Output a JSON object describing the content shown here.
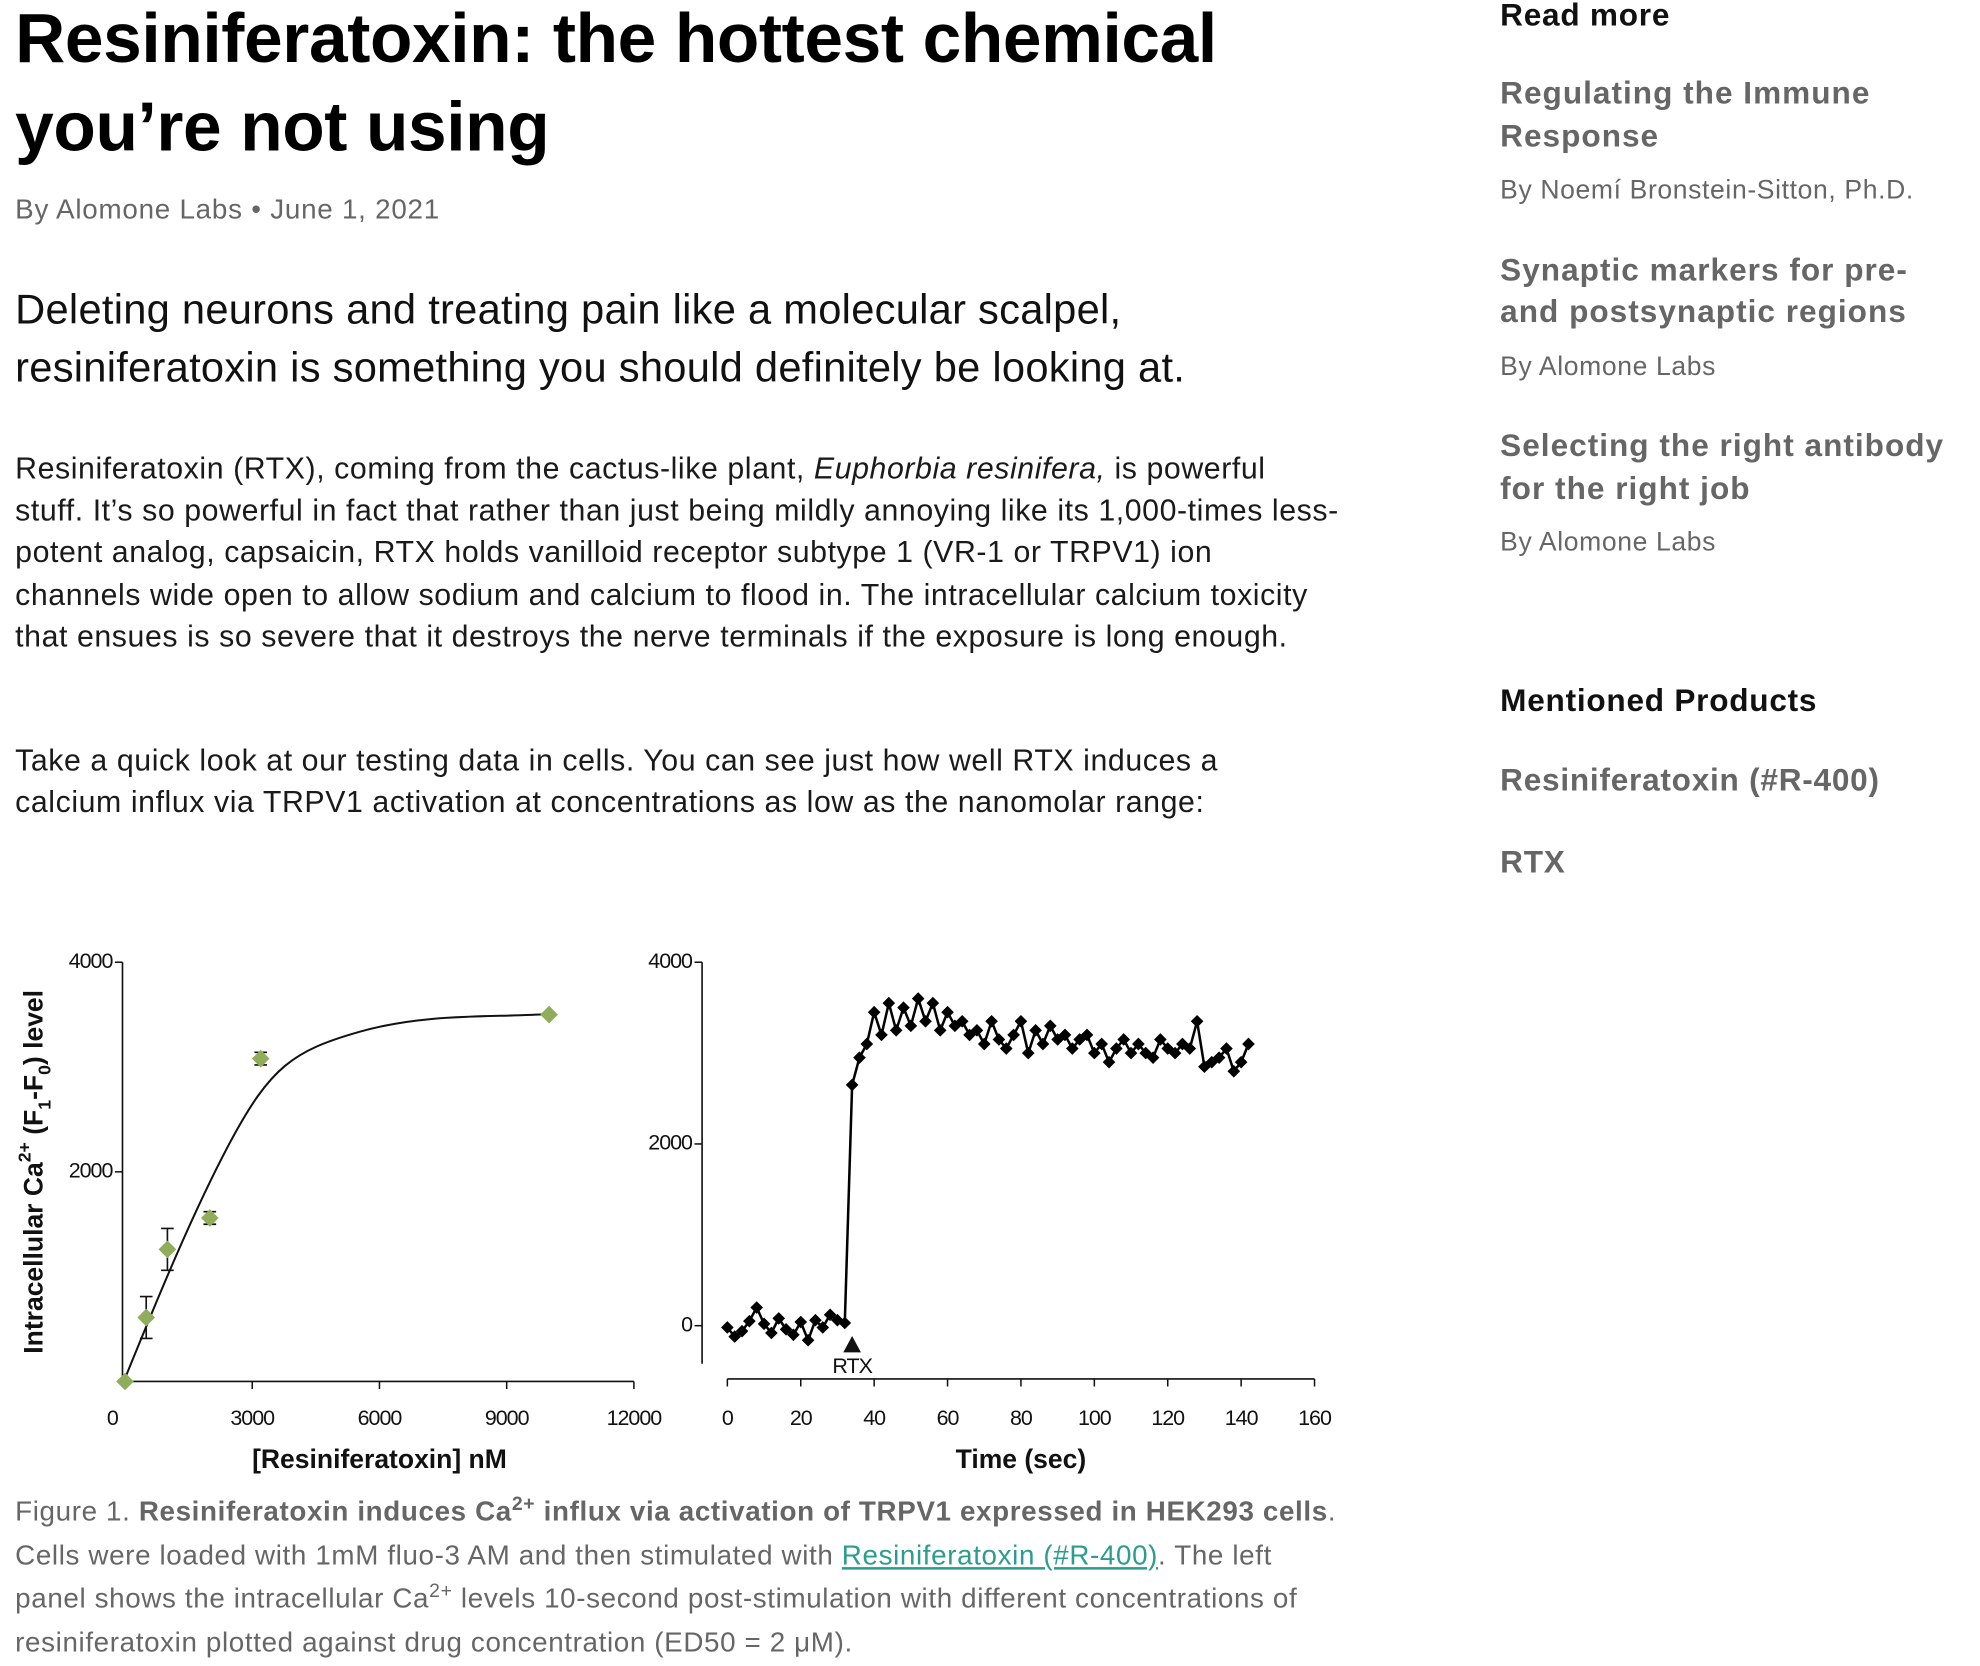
{
  "article": {
    "title": "Resiniferatoxin: the hottest chemical you’re not using",
    "byline": {
      "author": "By Alomone Labs",
      "separator": "•",
      "date": "June 1, 2021"
    },
    "lead": "Deleting neurons and treating pain like a molecular scalpel, resiniferatoxin is something you should definitely be looking at.",
    "paragraphs": [
      [
        {
          "text": "Resiniferatoxin (RTX), coming from the cactus-like plant, ",
          "style": "normal"
        },
        {
          "text": "Euphorbia resinifera,",
          "style": "italic"
        },
        {
          "text": " is powerful stuff. It’s so powerful in fact that rather than just being mildly annoying like its 1,000-times less-potent analog, capsaicin, RTX holds vanilloid receptor subtype 1 (VR-1 or TRPV1) ion channels wide open to allow sodium and calcium to flood in. The intracellular calcium toxicity that ensues is so severe that it destroys the nerve terminals if the exposure is long enough.",
          "style": "normal"
        }
      ],
      [
        {
          "text": "Take a quick look at our testing data in cells. You can see just how well RTX induces a calcium influx via TRPV1 activation at concentrations as low as the nanomolar range:",
          "style": "normal"
        }
      ]
    ]
  },
  "chart_data": [
    {
      "type": "scatter",
      "xlabel": "[Resiniferatoxin] nM",
      "ylabel": [
        {
          "text": "Intracellular Ca",
          "style": "normal"
        },
        {
          "text": "2+",
          "style": "sup"
        },
        {
          "text": " (F",
          "style": "normal"
        },
        {
          "text": "1",
          "style": "sub"
        },
        {
          "text": "-F",
          "style": "normal"
        },
        {
          "text": "0",
          "style": "sub"
        },
        {
          "text": ") level",
          "style": "normal"
        }
      ],
      "x": [
        0,
        500,
        1000,
        2000,
        3200,
        10000
      ],
      "values": [
        0,
        610,
        1260,
        1560,
        3080,
        3500
      ],
      "errors": [
        0,
        200,
        200,
        60,
        60,
        0
      ],
      "color": "#8fad5a",
      "xlim": [
        0,
        12000
      ],
      "ylim": [
        0,
        4000
      ],
      "xticks": [
        0,
        3000,
        6000,
        9000,
        12000
      ],
      "yticks": [
        2000,
        4000
      ]
    },
    {
      "type": "line",
      "xlabel": "Time (sec)",
      "x": [
        0,
        2,
        4,
        6,
        8,
        10,
        12,
        14,
        16,
        18,
        20,
        22,
        24,
        26,
        28,
        30,
        32,
        34,
        36,
        38,
        40,
        42,
        44,
        46,
        48,
        50,
        52,
        54,
        56,
        58,
        60,
        62,
        64,
        66,
        68,
        70,
        72,
        74,
        76,
        78,
        80,
        82,
        84,
        86,
        88,
        90,
        92,
        94,
        96,
        98,
        100,
        102,
        104,
        106,
        108,
        110,
        112,
        114,
        116,
        118,
        120,
        122,
        124,
        126,
        128,
        130,
        132,
        134,
        136,
        138,
        140,
        142
      ],
      "values": [
        -20,
        -120,
        -60,
        50,
        200,
        20,
        -80,
        80,
        -40,
        -100,
        40,
        -160,
        60,
        -20,
        120,
        60,
        30,
        2650,
        2950,
        3100,
        3450,
        3200,
        3550,
        3250,
        3500,
        3300,
        3600,
        3350,
        3550,
        3250,
        3450,
        3300,
        3350,
        3200,
        3250,
        3100,
        3350,
        3150,
        3050,
        3200,
        3350,
        3000,
        3250,
        3100,
        3300,
        3150,
        3200,
        3050,
        3150,
        3200,
        3000,
        3100,
        2900,
        3050,
        3150,
        3000,
        3100,
        3000,
        2950,
        3150,
        3050,
        3000,
        3100,
        3050,
        3350,
        2850,
        2900,
        2950,
        3050,
        2800,
        2900,
        3100
      ],
      "color": "#000000",
      "xlim": [
        0,
        160
      ],
      "ylim": [
        -600,
        4000
      ],
      "xticks": [
        0,
        20,
        40,
        60,
        80,
        100,
        120,
        140,
        160
      ],
      "yticks": [
        0,
        2000,
        4000
      ],
      "annotations": [
        {
          "text": "RTX",
          "x": 34
        }
      ]
    }
  ],
  "caption": [
    {
      "text": "Figure 1. ",
      "style": "normal"
    },
    {
      "text": "Resiniferatoxin induces Ca",
      "style": "bold"
    },
    {
      "text": "2+",
      "style": "bold sup"
    },
    {
      "text": " influx via activation of TRPV1 expressed in HEK293 cells",
      "style": "bold"
    },
    {
      "text": ". Cells were loaded with 1mM fluo-3 AM and then stimulated with ",
      "style": "normal"
    },
    {
      "text": "Resiniferatoxin (#R-400)",
      "style": "link"
    },
    {
      "text": ". The left panel shows the intracellular Ca",
      "style": "normal"
    },
    {
      "text": "2+",
      "style": "sup"
    },
    {
      "text": " levels 10-second post-stimulation with different concentrations of resiniferatoxin plotted against drug concentration (ED50 = 2 μM).",
      "style": "normal"
    }
  ],
  "sidebar": {
    "read_more": {
      "heading": "Read more",
      "items": [
        {
          "title": "Regulating the Immune Response",
          "byline": "By Noemí Bronstein-Sitton, Ph.D."
        },
        {
          "title": "Synaptic markers for pre- and postsynaptic regions",
          "byline": "By Alomone Labs"
        },
        {
          "title": "Selecting the right antibody for the right job",
          "byline": "By Alomone Labs"
        }
      ]
    },
    "mentioned": {
      "heading": "Mentioned Products",
      "items": [
        "Resiniferatoxin (#R-400)",
        "RTX"
      ]
    }
  }
}
